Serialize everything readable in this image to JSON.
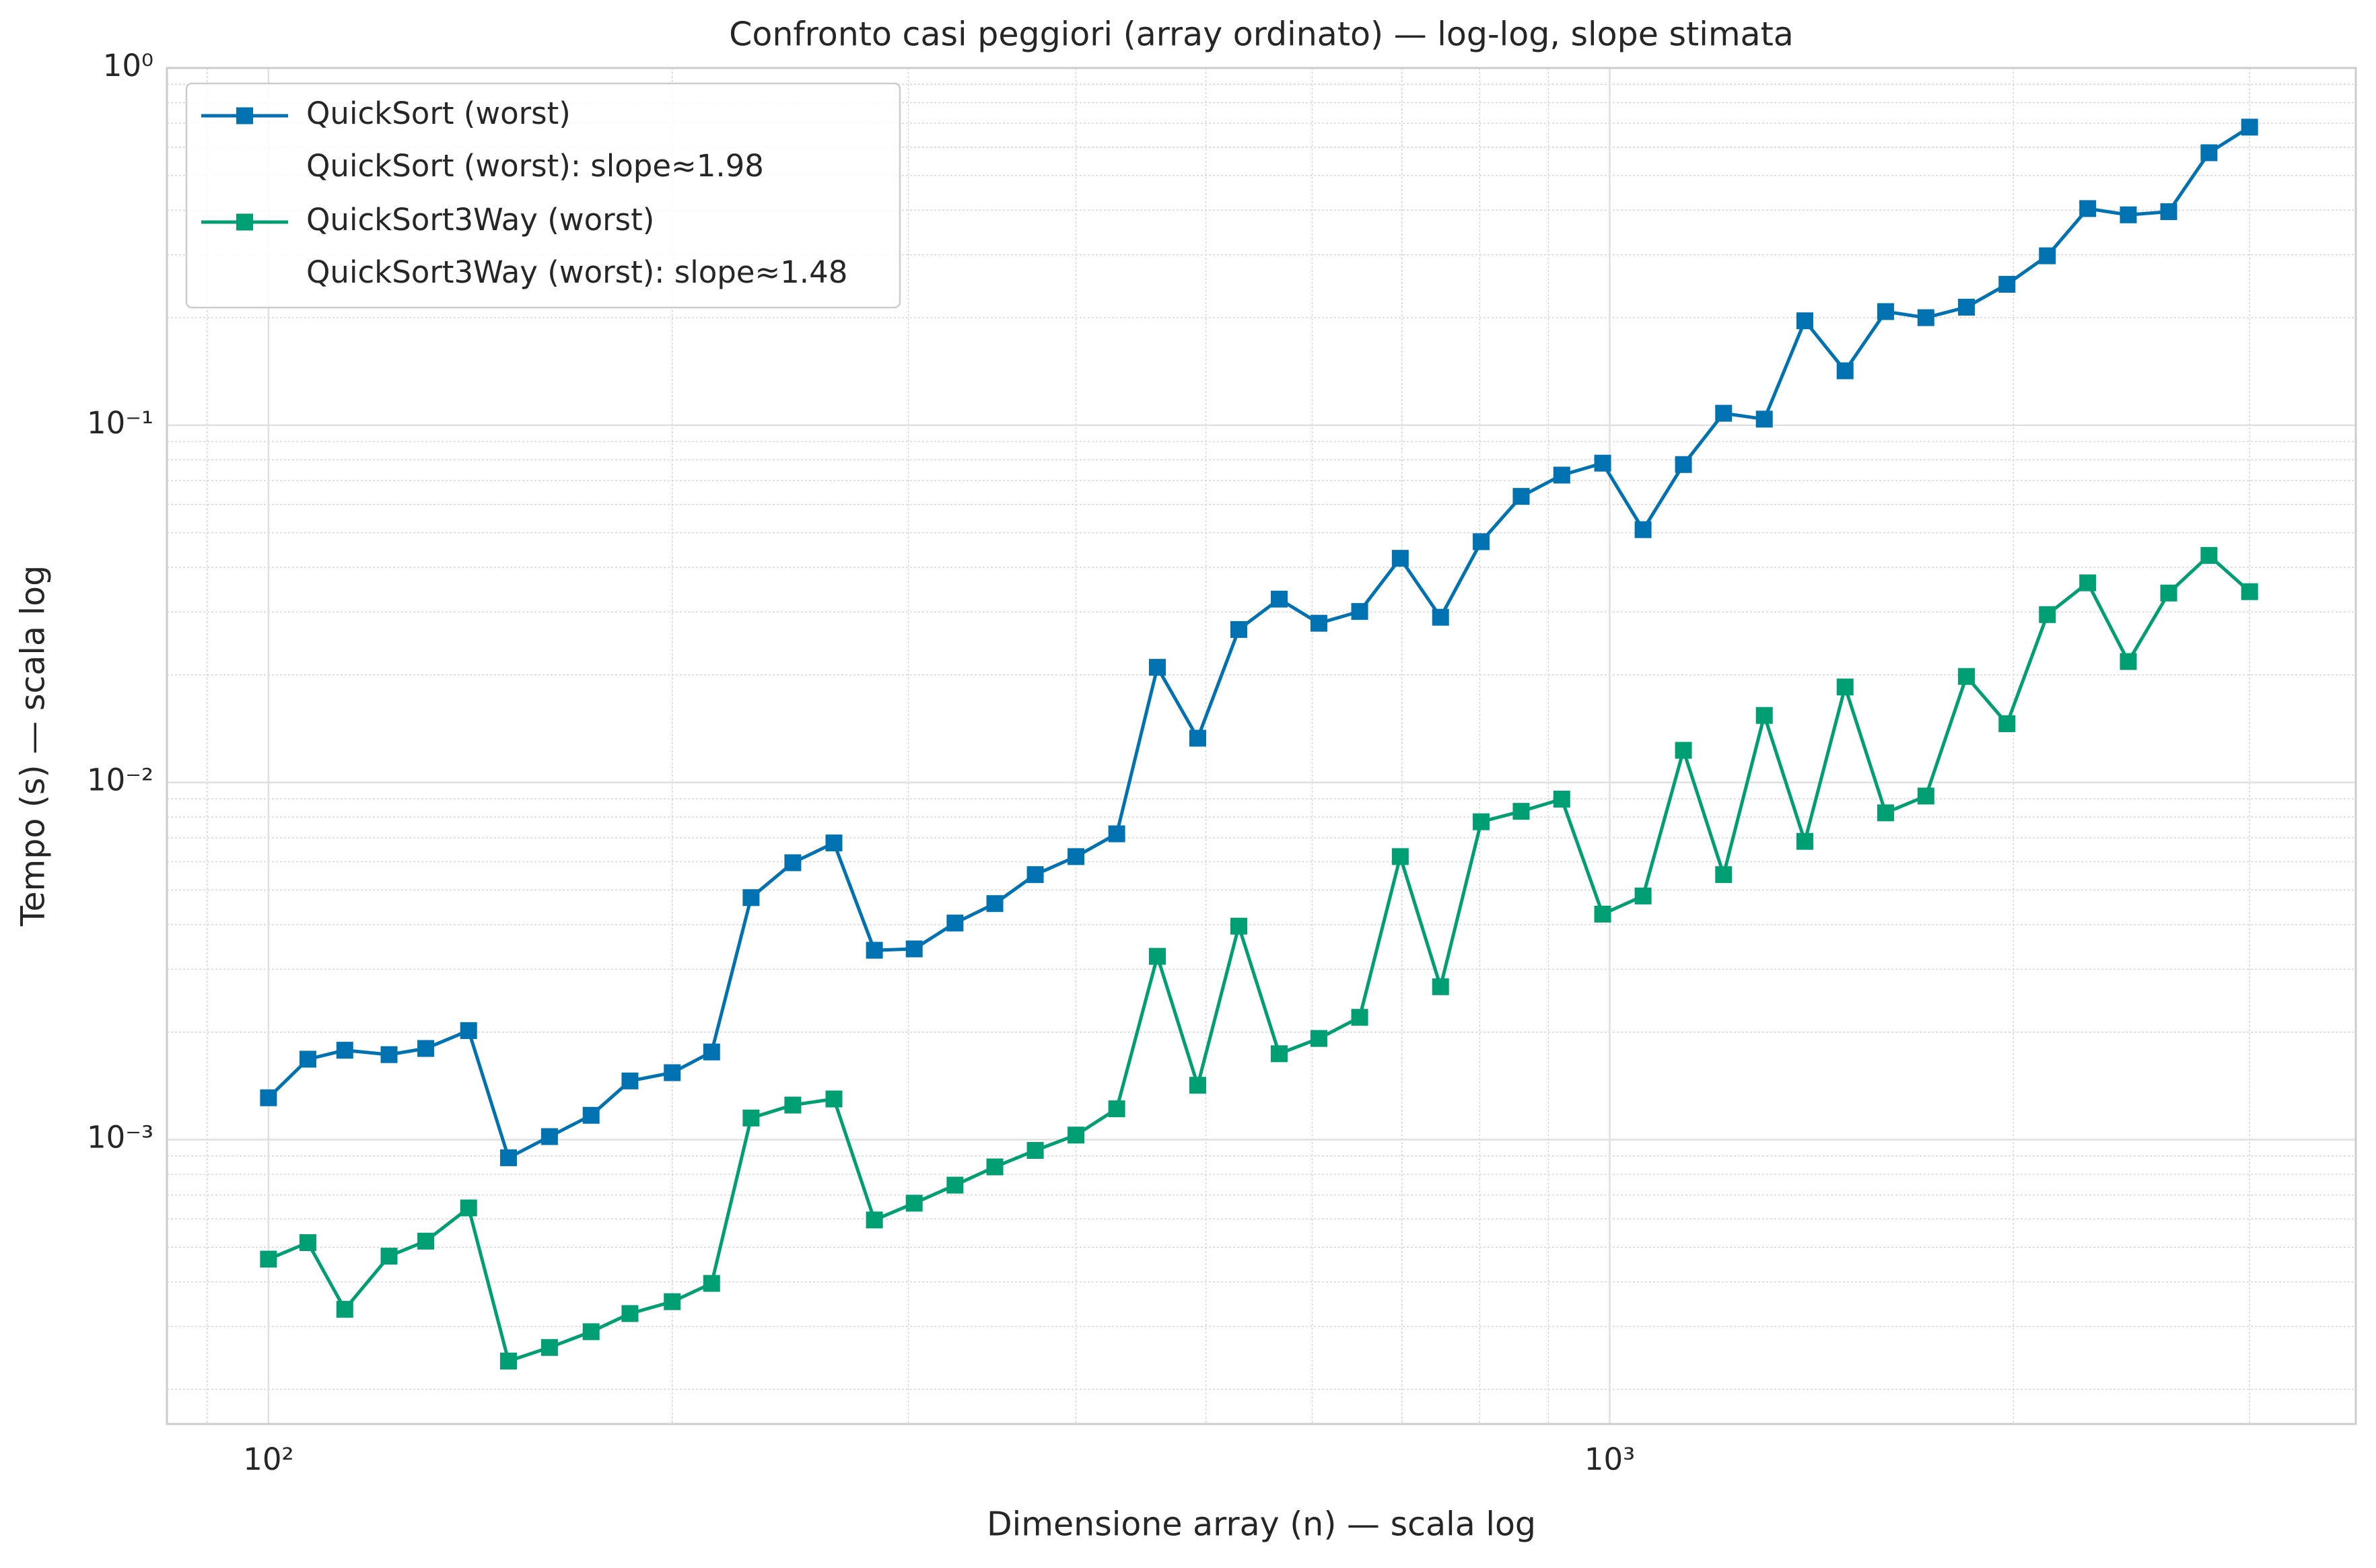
{
  "chart_data": {
    "type": "line",
    "title": "Confronto casi peggiori (array ordinato) — log-log, slope stimata",
    "x_label": "Dimensione array (n) — scala log",
    "y_label": "Tempo (s) — scala log",
    "x": [
      100,
      107,
      114,
      123,
      131,
      141,
      151,
      162,
      174,
      186,
      200,
      214,
      229,
      246,
      264,
      283,
      303,
      325,
      348,
      373,
      400,
      429,
      460,
      493,
      529,
      567,
      607,
      651,
      698,
      748,
      802,
      859,
      921,
      988,
      1059,
      1135,
      1216,
      1304,
      1398,
      1498,
      1606,
      1721,
      1845,
      1978,
      2120,
      2272,
      2436,
      2611,
      2798,
      3000
    ],
    "series": [
      {
        "name": "QuickSort (worst)",
        "slope_label": "QuickSort (worst): slope≈1.98",
        "color": "#0072b2",
        "values": [
          0.00131,
          0.00168,
          0.00178,
          0.00173,
          0.0018,
          0.00202,
          0.00089,
          0.00102,
          0.00117,
          0.00146,
          0.00154,
          0.00176,
          0.00476,
          0.00596,
          0.00677,
          0.00339,
          0.00342,
          0.00404,
          0.00458,
          0.00552,
          0.0062,
          0.00718,
          0.021,
          0.0133,
          0.0268,
          0.0326,
          0.0279,
          0.0301,
          0.0424,
          0.029,
          0.0472,
          0.0632,
          0.0725,
          0.0783,
          0.051,
          0.0776,
          0.108,
          0.104,
          0.196,
          0.142,
          0.208,
          0.2,
          0.214,
          0.248,
          0.298,
          0.404,
          0.388,
          0.396,
          0.579,
          0.683
        ]
      },
      {
        "name": "QuickSort3Way (worst)",
        "slope_label": "QuickSort3Way (worst): slope≈1.48",
        "color": "#009e73",
        "values": [
          0.000463,
          0.000515,
          0.000335,
          0.000472,
          0.00052,
          0.000644,
          0.00024,
          0.000262,
          0.00029,
          0.000326,
          0.000352,
          0.000396,
          0.00115,
          0.00125,
          0.0013,
          0.000596,
          0.000664,
          0.000746,
          0.000839,
          0.000933,
          0.00103,
          0.00122,
          0.00326,
          0.00142,
          0.00396,
          0.00174,
          0.00192,
          0.0022,
          0.0062,
          0.00268,
          0.00776,
          0.0083,
          0.00898,
          0.00428,
          0.00481,
          0.0123,
          0.00552,
          0.0154,
          0.00684,
          0.0185,
          0.00822,
          0.00916,
          0.0198,
          0.0146,
          0.0295,
          0.0362,
          0.0218,
          0.0339,
          0.0432,
          0.0342
        ]
      }
    ],
    "xlog": true,
    "ylog": true,
    "xlim": [
      84,
      3600
    ],
    "ylim": [
      0.00016,
      1
    ],
    "xticks": [
      {
        "value": 100,
        "label": "10²"
      },
      {
        "value": 1000,
        "label": "10³"
      }
    ],
    "yticks": [
      {
        "value": 0.001,
        "label": "10⁻³"
      },
      {
        "value": 0.01,
        "label": "10⁻²"
      },
      {
        "value": 0.1,
        "label": "10⁻¹"
      },
      {
        "value": 1,
        "label": "10⁰"
      }
    ],
    "xminorticks": [
      90,
      200,
      300,
      400,
      500,
      600,
      700,
      800,
      900,
      2000,
      3000
    ],
    "yminorticks": [
      0.0002,
      0.0003,
      0.0004,
      0.0005,
      0.0006,
      0.0007,
      0.0008,
      0.0009,
      0.002,
      0.003,
      0.004,
      0.005,
      0.006,
      0.007,
      0.008,
      0.009,
      0.02,
      0.03,
      0.04,
      0.05,
      0.06,
      0.07,
      0.08,
      0.09,
      0.2,
      0.3,
      0.4,
      0.5,
      0.6,
      0.7,
      0.8,
      0.9
    ],
    "grid": true,
    "legend": "upper left"
  }
}
